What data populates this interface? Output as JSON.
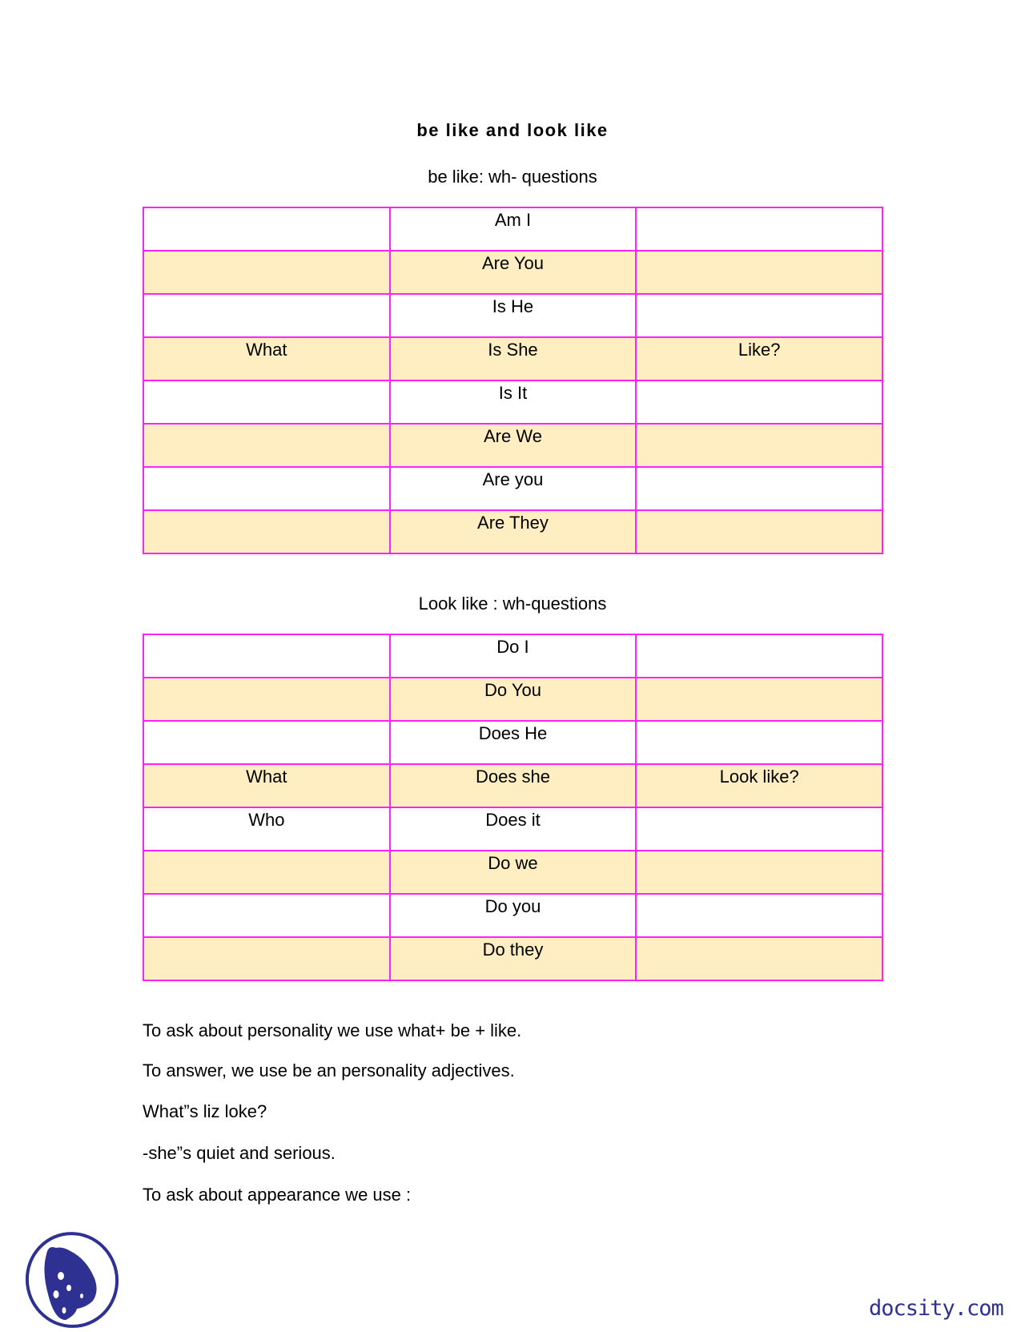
{
  "title": "be like and look like",
  "table1": {
    "heading": "be like: wh- questions",
    "rows": [
      [
        "",
        "Am I",
        ""
      ],
      [
        "",
        "Are You",
        ""
      ],
      [
        "",
        "Is He",
        ""
      ],
      [
        "What",
        "Is She",
        "Like?"
      ],
      [
        "",
        "Is It",
        ""
      ],
      [
        "",
        "Are We",
        ""
      ],
      [
        "",
        "Are you",
        ""
      ],
      [
        "",
        "Are They",
        ""
      ]
    ]
  },
  "table2": {
    "heading": "Look like : wh-questions",
    "rows": [
      [
        "",
        "Do I",
        ""
      ],
      [
        "",
        "Do You",
        ""
      ],
      [
        "",
        "Does He",
        ""
      ],
      [
        "What",
        "Does she",
        "Look like?"
      ],
      [
        "Who",
        "Does it",
        ""
      ],
      [
        "",
        "Do we",
        ""
      ],
      [
        "",
        "Do you",
        ""
      ],
      [
        "",
        "Do they",
        ""
      ]
    ]
  },
  "paragraphs": [
    "To ask about personality we use what+ be + like.",
    "To answer, we use be an personality adjectives.",
    "What”s liz loke?",
    "-she”s quiet and serious.",
    "To ask about appearance we use :"
  ],
  "footer": {
    "brand": "docsity.com",
    "brand_color": "#2e3192",
    "logo_icon": "docsity-logo-icon"
  },
  "colors": {
    "border": "#ff22ff",
    "alt_row": "#ffeec2"
  }
}
